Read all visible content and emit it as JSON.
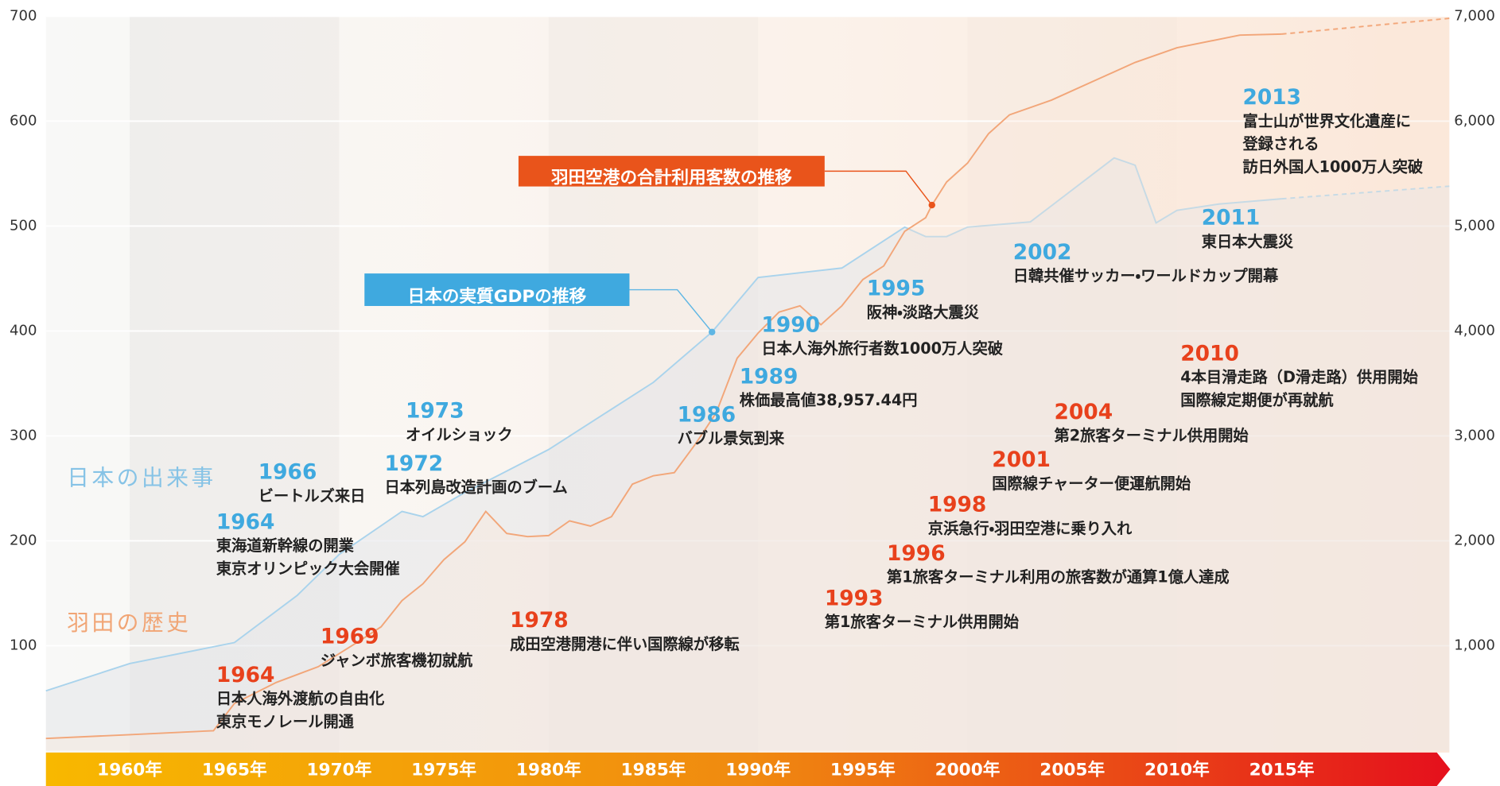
{
  "chart_data": {
    "type": "line",
    "xlim": [
      1956,
      2023
    ],
    "xticks": [
      {
        "value": 1960,
        "label": "1960年"
      },
      {
        "value": 1965,
        "label": "1965年"
      },
      {
        "value": 1970,
        "label": "1970年"
      },
      {
        "value": 1975,
        "label": "1975年"
      },
      {
        "value": 1980,
        "label": "1980年"
      },
      {
        "value": 1985,
        "label": "1985年"
      },
      {
        "value": 1990,
        "label": "1990年"
      },
      {
        "value": 1995,
        "label": "1995年"
      },
      {
        "value": 2000,
        "label": "2000年"
      },
      {
        "value": 2005,
        "label": "2005年"
      },
      {
        "value": 2010,
        "label": "2010年"
      },
      {
        "value": 2015,
        "label": "2015年"
      }
    ],
    "ylim": [
      0,
      700
    ],
    "yticks": [
      100,
      200,
      300,
      400,
      500,
      600,
      700
    ],
    "y2lim": [
      0,
      7000
    ],
    "y2ticks": [
      {
        "value": 1000,
        "label": "1,000"
      },
      {
        "value": 2000,
        "label": "2,000"
      },
      {
        "value": 3000,
        "label": "3,000"
      },
      {
        "value": 4000,
        "label": "4,000"
      },
      {
        "value": 5000,
        "label": "5,000"
      },
      {
        "value": 6000,
        "label": "6,000"
      },
      {
        "value": 7000,
        "label": "7,000"
      }
    ],
    "grid": true,
    "series": [
      {
        "name": "日本の実質GDPの推移",
        "color": "#a9d3ec",
        "label_color": "#3fa9df",
        "x": [
          1956,
          1960,
          1965,
          1968,
          1970,
          1973,
          1974,
          1976,
          1980,
          1985,
          1987.8,
          1990,
          1994,
          1997,
          1998,
          1999,
          2000,
          2003,
          2007,
          2008,
          2009,
          2010,
          2012,
          2015,
          2023
        ],
        "values": [
          57,
          83,
          103,
          148,
          187,
          228,
          223,
          246,
          287,
          351,
          399,
          451,
          460,
          499,
          490,
          490,
          499,
          504,
          565,
          558,
          503,
          515,
          521,
          526,
          538
        ]
      },
      {
        "name": "羽田空港の合計利用客数の推移",
        "color": "#f2a679",
        "label_color": "#e9541b",
        "axis": "y2",
        "x": [
          1956,
          1960,
          1964,
          1965,
          1967,
          1969,
          1971,
          1972,
          1973,
          1974,
          1975,
          1976,
          1977,
          1978,
          1979,
          1980,
          1981,
          1982,
          1983,
          1984,
          1985,
          1986,
          1987,
          1988,
          1989,
          1990,
          1991,
          1992,
          1993,
          1994,
          1995,
          1996,
          1997,
          1998,
          1998.3,
          1999,
          2000,
          2001,
          2002,
          2004,
          2006,
          2008,
          2010,
          2013,
          2015,
          2023
        ],
        "values": [
          116,
          152,
          190,
          450,
          650,
          800,
          1050,
          1180,
          1430,
          1590,
          1820,
          1990,
          2280,
          2070,
          2040,
          2050,
          2190,
          2140,
          2230,
          2540,
          2620,
          2650,
          2920,
          3220,
          3740,
          3980,
          4180,
          4240,
          4060,
          4240,
          4490,
          4620,
          4950,
          5080,
          5200,
          5420,
          5600,
          5880,
          6060,
          6200,
          6380,
          6560,
          6700,
          6820,
          6830,
          6980
        ]
      }
    ],
    "event_groups": [
      {
        "title": "日本の出来事",
        "color": "#3fa9df",
        "title_color": "#86c3e6",
        "events": [
          {
            "year": 1964,
            "lines": [
              "東海道新幹線の開業",
              "東京オリンピック大会開催"
            ]
          },
          {
            "year": 1966,
            "lines": [
              "ビートルズ来日"
            ]
          },
          {
            "year": 1972,
            "lines": [
              "日本列島改造計画のブーム"
            ]
          },
          {
            "year": 1973,
            "lines": [
              "オイルショック"
            ]
          },
          {
            "year": 1986,
            "lines": [
              "バブル景気到来"
            ]
          },
          {
            "year": 1989,
            "lines": [
              "株価最高値38,957.44円"
            ]
          },
          {
            "year": 1990,
            "lines": [
              "日本人海外旅行者数1000万人突破"
            ]
          },
          {
            "year": 1995,
            "lines": [
              "阪神・淡路大震災"
            ]
          },
          {
            "year": 2002,
            "lines": [
              "日韓共催サッカー・ワールドカップ開幕"
            ]
          },
          {
            "year": 2011,
            "lines": [
              "東日本大震災"
            ]
          },
          {
            "year": 2013,
            "lines": [
              "富士山が世界文化遺産に",
              "登録される",
              "訪日外国人1000万人突破"
            ]
          }
        ]
      },
      {
        "title": "羽田の歴史",
        "color": "#e8411c",
        "title_color": "#f1a575",
        "events": [
          {
            "year": 1964,
            "lines": [
              "日本人海外渡航の自由化",
              "東京モノレール開通"
            ]
          },
          {
            "year": 1969,
            "lines": [
              "ジャンボ旅客機初就航"
            ]
          },
          {
            "year": 1978,
            "lines": [
              "成田空港開港に伴い国際線が移転"
            ]
          },
          {
            "year": 1993,
            "lines": [
              "第1旅客ターミナル供用開始"
            ]
          },
          {
            "year": 1996,
            "lines": [
              "第1旅客ターミナル利用の旅客数が通算1億人達成"
            ]
          },
          {
            "year": 1998,
            "lines": [
              "京浜急行・羽田空港に乗り入れ"
            ]
          },
          {
            "year": 2001,
            "lines": [
              "国際線チャーター便運航開始"
            ]
          },
          {
            "year": 2004,
            "lines": [
              "第2旅客ターミナル供用開始"
            ]
          },
          {
            "year": 2010,
            "lines": [
              "4本目滑走路（D滑走路）供用開始",
              "国際線定期便が再就航"
            ]
          }
        ]
      }
    ]
  }
}
